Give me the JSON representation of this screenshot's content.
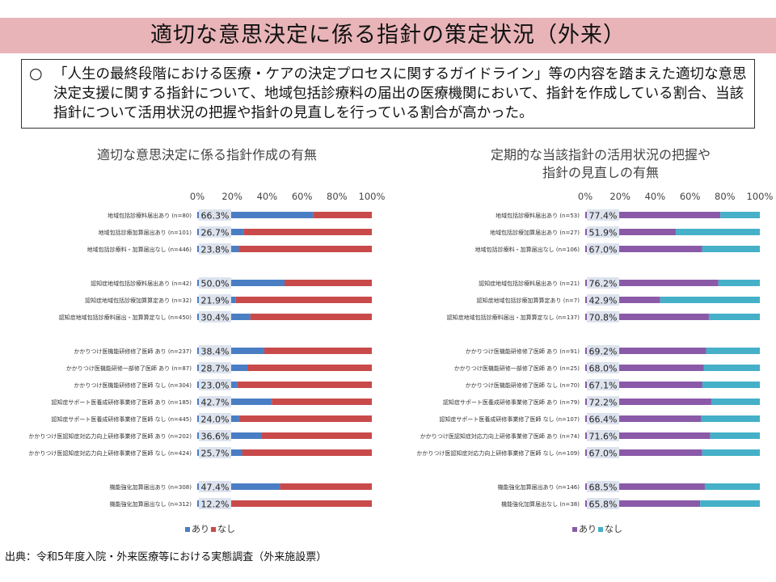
{
  "header": {
    "title": "適切な意思決定に係る指針の策定状況（外来）",
    "summary_mark": "○",
    "summary": "「人生の最終段階における医療・ケアの決定プロセスに関するガイドライン」等の内容を踏まえた適切な意思決定支援に関する指針について、地域包括診療料の届出の医療機関において、指針を作成している割合、当該指針について活用状況の把握や指針の見直しを行っている割合が高かった。"
  },
  "footer": {
    "source": "出典：令和5年度入院・外来医療等における実態調査（外来施設票）"
  },
  "chart_data": [
    {
      "type": "bar",
      "orientation": "horizontal",
      "stacked": true,
      "title": "適切な意思決定に係る指針作成の有無",
      "xlim": [
        0,
        100
      ],
      "x_ticks": [
        "0%",
        "20%",
        "40%",
        "60%",
        "80%",
        "100%"
      ],
      "legend_position": "bottom",
      "series": [
        {
          "name": "あり",
          "color": "#4a7ec4"
        },
        {
          "name": "なし",
          "color": "#c94a4a"
        }
      ],
      "categories": [
        "地域包括診療料届出あり (n=80)",
        "地域包括診療加算届出あり (n=101)",
        "地域包括診療料・加算届出なし (n=446)",
        "認知症地域包括診療料届出あり (n=42)",
        "認知症地域包括診療加算算定あり (n=32)",
        "認知症地域包括診療料届出・加算算定なし (n=450)",
        "かかりつけ医機能研修修了医師 あり (n=237)",
        "かかりつけ医機能研修一部修了医師 あり (n=87)",
        "かかりつけ医機能研修修了医師 なし (n=304)",
        "認知症サポート医養成研修事業修了医師 あり (n=185)",
        "認知症サポート医養成研修事業修了医師 なし (n=445)",
        "かかりつけ医認知症対応力向上研修事業修了医師 あり (n=202)",
        "かかりつけ医認知症対応力向上研修事業修了医師 なし (n=424)",
        "機能強化加算届出あり (n=308)",
        "機能強化加算届出なし (n=312)"
      ],
      "values": [
        66.3,
        26.7,
        23.8,
        50.0,
        21.9,
        30.4,
        38.4,
        28.7,
        23.0,
        42.7,
        24.0,
        36.6,
        25.7,
        47.4,
        12.2
      ],
      "labels": [
        "66.3%",
        "26.7%",
        "23.8%",
        "50.0%",
        "21.9%",
        "30.4%",
        "38.4%",
        "28.7%",
        "23.0%",
        "42.7%",
        "24.0%",
        "36.6%",
        "25.7%",
        "47.4%",
        "12.2%"
      ]
    },
    {
      "type": "bar",
      "orientation": "horizontal",
      "stacked": true,
      "title_lines": [
        "定期的な当該指針の活用状況の把握や",
        "指針の見直しの有無"
      ],
      "xlim": [
        0,
        100
      ],
      "x_ticks": [
        "0%",
        "20%",
        "40%",
        "60%",
        "80%",
        "100%"
      ],
      "legend_position": "bottom",
      "series": [
        {
          "name": "あり",
          "color": "#8a5aa8"
        },
        {
          "name": "なし",
          "color": "#45b0c8"
        }
      ],
      "categories": [
        "地域包括診療料届出あり (n=53)",
        "地域包括診療加算届出あり (n=27)",
        "地域包括診療料・加算届出なし (n=106)",
        "認知症地域包括診療料届出あり (n=21)",
        "認知症地域包括診療加算算定あり (n=7)",
        "認知症地域包括診療料届出・加算算定なし (n=137)",
        "かかりつけ医機能研修修了医師 あり (n=91)",
        "かかりつけ医機能研修一部修了医師 あり (n=25)",
        "かかりつけ医機能研修修了医師 なし (n=70)",
        "認知症サポート医養成研修事業修了医師 あり (n=79)",
        "認知症サポート医養成研修事業修了医師 なし (n=107)",
        "かかりつけ医認知症対応力向上研修事業修了医師 あり (n=74)",
        "かかりつけ医認知症対応力向上研修事業修了医師 なし (n=109)",
        "機能強化加算届出あり (n=146)",
        "機能強化加算届出なし (n=38)"
      ],
      "values": [
        77.4,
        51.9,
        67.0,
        76.2,
        42.9,
        70.8,
        69.2,
        68.0,
        67.1,
        72.2,
        66.4,
        71.6,
        67.0,
        68.5,
        65.8
      ],
      "labels": [
        "77.4%",
        "51.9%",
        "67.0%",
        "76.2%",
        "42.9%",
        "70.8%",
        "69.2%",
        "68.0%",
        "67.1%",
        "72.2%",
        "66.4%",
        "71.6%",
        "67.0%",
        "68.5%",
        "65.8%"
      ]
    }
  ]
}
